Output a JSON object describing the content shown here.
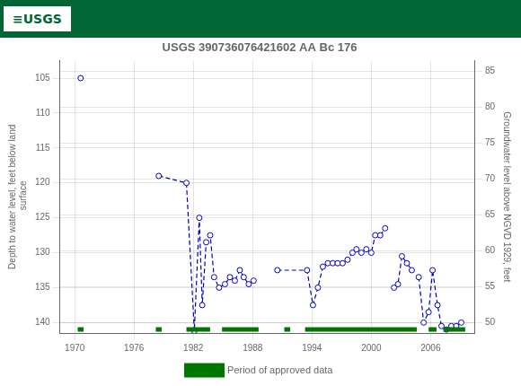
{
  "chart_data": {
    "type": "line",
    "title": "USGS 390736076421602 AA Bc 176",
    "header": {
      "text": "≡USGS",
      "color": "#006633"
    },
    "ylabel": "Depth to water level, feet below land\n surface",
    "y2label": "Groundwater level above NGVD 1929, feet",
    "xlim": [
      1968.5,
      2010.5
    ],
    "xticks": [
      1970,
      1976,
      1982,
      1988,
      1994,
      2000,
      2006
    ],
    "ylim": [
      141.5,
      102.5
    ],
    "yticks": [
      105,
      110,
      115,
      120,
      125,
      130,
      135,
      140
    ],
    "y2lim": [
      48.5,
      86.5
    ],
    "y2ticks": [
      85,
      80,
      75,
      70,
      65,
      60,
      55,
      50
    ],
    "grid": true,
    "legend": "bottom",
    "series": [
      {
        "type": "line",
        "color": "#0000bb",
        "marker": "circle",
        "marker_color": "#ffffff",
        "line_style": "dashed",
        "segments": [
          {
            "x": [
              1970.6
            ],
            "values": [
              105.0
            ]
          },
          {
            "x": [
              1978.5,
              1981.3,
              1982.1,
              1982.6,
              1982.9,
              1983.3,
              1983.7,
              1984.1,
              1984.6,
              1985.2,
              1985.7,
              1986.2,
              1986.7,
              1987.1,
              1987.6,
              1988.1
            ],
            "values": [
              119.0,
              120.0,
              141.2,
              125.0,
              137.5,
              128.5,
              127.5,
              133.5,
              135.0,
              134.5,
              133.5,
              134.0,
              132.5,
              133.5,
              134.5,
              134.0
            ]
          },
          {
            "x": [
              1990.5,
              1993.5,
              1994.1,
              1994.6,
              1995.1,
              1995.6,
              1996.1,
              1996.6,
              1997.1,
              1997.6,
              1998.1,
              1998.5,
              1999.0,
              1999.5,
              2000.0,
              2000.4,
              2000.9,
              2001.4
            ],
            "values": [
              132.5,
              132.5,
              137.5,
              135.0,
              132.0,
              131.5,
              131.5,
              131.5,
              131.5,
              131.0,
              130.0,
              129.5,
              130.0,
              129.5,
              130.0,
              127.5,
              127.5,
              126.5
            ]
          },
          {
            "x": [
              2002.3,
              2002.7,
              2003.1,
              2003.6,
              2004.1
            ],
            "values": [
              135.0,
              134.5,
              130.5,
              131.5,
              132.5
            ]
          },
          {
            "x": [
              2004.8,
              2005.3,
              2005.8,
              2006.2,
              2006.7,
              2007.1,
              2007.6,
              2008.1,
              2008.6,
              2009.1
            ],
            "values": [
              133.5,
              140.0,
              138.5,
              132.5,
              137.5,
              140.5,
              141.0,
              140.5,
              140.5,
              140.0
            ]
          }
        ]
      },
      {
        "name": "Period of approved data",
        "type": "bar",
        "color": "#007700",
        "y": 141.0,
        "ranges": [
          [
            1970.3,
            1970.9
          ],
          [
            1978.2,
            1978.8
          ],
          [
            1981.3,
            1983.7
          ],
          [
            1984.9,
            1988.6
          ],
          [
            1991.2,
            1991.8
          ],
          [
            1993.3,
            2004.6
          ],
          [
            2005.8,
            2006.6
          ],
          [
            2007.3,
            2009.5
          ]
        ]
      }
    ]
  }
}
